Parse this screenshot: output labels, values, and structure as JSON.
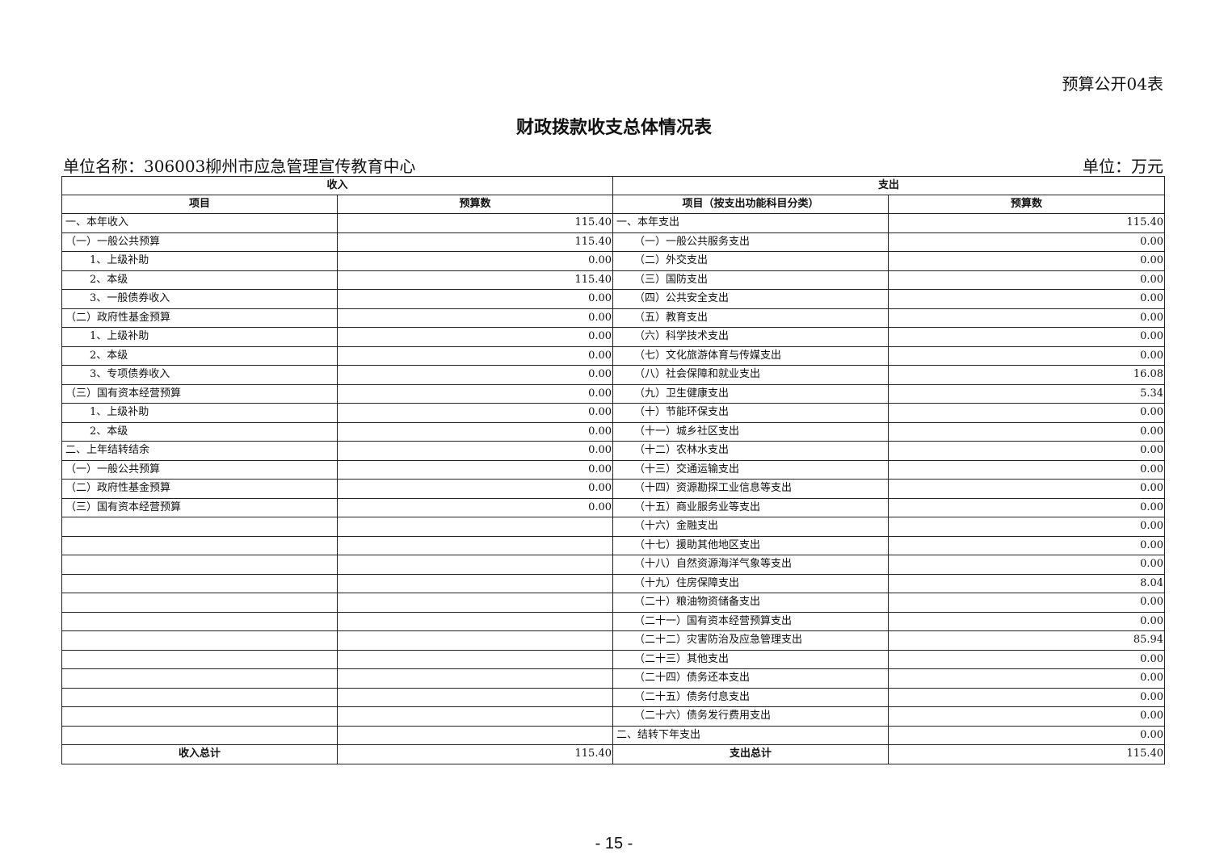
{
  "form_number": "预算公开04表",
  "title": "财政拨款收支总体情况表",
  "unit_name": "单位名称：306003柳州市应急管理宣传教育中心",
  "unit": "单位：万元",
  "headers": {
    "income": "收入",
    "expenditure": "支出",
    "income_item": "项目",
    "income_amount": "预算数",
    "exp_item": "项目（按支出功能科目分类）",
    "exp_amount": "预算数"
  },
  "income_rows": [
    {
      "item": "一、本年收入",
      "amount": "115.40",
      "level": 0
    },
    {
      "item": "（一）一般公共预算",
      "amount": "115.40",
      "level": 1
    },
    {
      "item": "1、上级补助",
      "amount": "0.00",
      "level": 2
    },
    {
      "item": "2、本级",
      "amount": "115.40",
      "level": 2
    },
    {
      "item": "3、一般债券收入",
      "amount": "0.00",
      "level": 2
    },
    {
      "item": "（二）政府性基金预算",
      "amount": "0.00",
      "level": 1
    },
    {
      "item": "1、上级补助",
      "amount": "0.00",
      "level": 2
    },
    {
      "item": "2、本级",
      "amount": "0.00",
      "level": 2
    },
    {
      "item": "3、专项债券收入",
      "amount": "0.00",
      "level": 2
    },
    {
      "item": "（三）国有资本经营预算",
      "amount": "0.00",
      "level": 1
    },
    {
      "item": "1、上级补助",
      "amount": "0.00",
      "level": 2
    },
    {
      "item": "2、本级",
      "amount": "0.00",
      "level": 2
    },
    {
      "item": "二、上年结转结余",
      "amount": "0.00",
      "level": 0
    },
    {
      "item": "（一）一般公共预算",
      "amount": "0.00",
      "level": 1
    },
    {
      "item": "（二）政府性基金预算",
      "amount": "0.00",
      "level": 1
    },
    {
      "item": "（三）国有资本经营预算",
      "amount": "0.00",
      "level": 1
    }
  ],
  "expenditure_rows": [
    {
      "item": "一、本年支出",
      "amount": "115.40",
      "level": 0
    },
    {
      "item": "（一）一般公共服务支出",
      "amount": "0.00",
      "level": 1
    },
    {
      "item": "（二）外交支出",
      "amount": "0.00",
      "level": 1
    },
    {
      "item": "（三）国防支出",
      "amount": "0.00",
      "level": 1
    },
    {
      "item": "（四）公共安全支出",
      "amount": "0.00",
      "level": 1
    },
    {
      "item": "（五）教育支出",
      "amount": "0.00",
      "level": 1
    },
    {
      "item": "（六）科学技术支出",
      "amount": "0.00",
      "level": 1
    },
    {
      "item": "（七）文化旅游体育与传媒支出",
      "amount": "0.00",
      "level": 1
    },
    {
      "item": "（八）社会保障和就业支出",
      "amount": "16.08",
      "level": 1
    },
    {
      "item": "（九）卫生健康支出",
      "amount": "5.34",
      "level": 1
    },
    {
      "item": "（十）节能环保支出",
      "amount": "0.00",
      "level": 1
    },
    {
      "item": "（十一）城乡社区支出",
      "amount": "0.00",
      "level": 1
    },
    {
      "item": "（十二）农林水支出",
      "amount": "0.00",
      "level": 1
    },
    {
      "item": "（十三）交通运输支出",
      "amount": "0.00",
      "level": 1
    },
    {
      "item": "（十四）资源勘探工业信息等支出",
      "amount": "0.00",
      "level": 1
    },
    {
      "item": "（十五）商业服务业等支出",
      "amount": "0.00",
      "level": 1
    },
    {
      "item": "（十六）金融支出",
      "amount": "0.00",
      "level": 1
    },
    {
      "item": "（十七）援助其他地区支出",
      "amount": "0.00",
      "level": 1
    },
    {
      "item": "（十八）自然资源海洋气象等支出",
      "amount": "0.00",
      "level": 1
    },
    {
      "item": "（十九）住房保障支出",
      "amount": "8.04",
      "level": 1
    },
    {
      "item": "（二十）粮油物资储备支出",
      "amount": "0.00",
      "level": 1
    },
    {
      "item": "（二十一）国有资本经营预算支出",
      "amount": "0.00",
      "level": 1
    },
    {
      "item": "（二十二）灾害防治及应急管理支出",
      "amount": "85.94",
      "level": 1
    },
    {
      "item": "（二十三）其他支出",
      "amount": "0.00",
      "level": 1
    },
    {
      "item": "（二十四）债务还本支出",
      "amount": "0.00",
      "level": 1
    },
    {
      "item": "（二十五）债务付息支出",
      "amount": "0.00",
      "level": 1
    },
    {
      "item": "（二十六）债务发行费用支出",
      "amount": "0.00",
      "level": 1
    },
    {
      "item": "二、结转下年支出",
      "amount": "0.00",
      "level": 0
    }
  ],
  "totals": {
    "income_label": "收入总计",
    "income_amount": "115.40",
    "exp_label": "支出总计",
    "exp_amount": "115.40"
  },
  "page_number": "- 15 -"
}
